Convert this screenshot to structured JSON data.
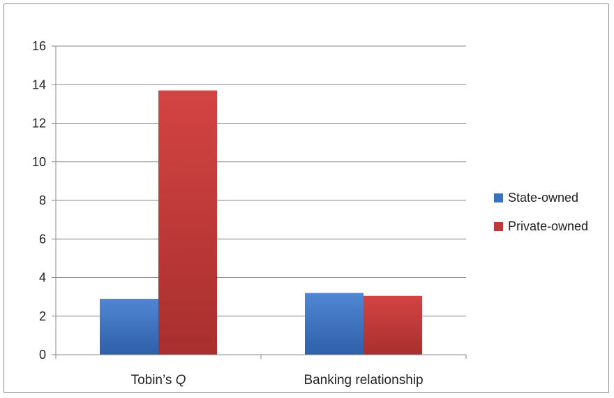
{
  "chart_data": {
    "type": "bar",
    "categories": [
      "Tobin’s Q",
      "Banking relationship"
    ],
    "category_parts": [
      {
        "text": "Tobin’s ",
        "italic": ""
      },
      {
        "text": "Banking relationship",
        "italic": ""
      }
    ],
    "category_italic_suffix": [
      "Q",
      ""
    ],
    "series": [
      {
        "name": "State-owned",
        "values": [
          2.9,
          3.2
        ],
        "color": "#3a72c0",
        "color_light": "#4f86d4",
        "color_dark": "#2f60a8"
      },
      {
        "name": "Private-owned",
        "values": [
          13.7,
          3.05
        ],
        "color": "#c0393a",
        "color_light": "#d34443",
        "color_dark": "#a82f2e"
      }
    ],
    "ylim": [
      0,
      16
    ],
    "yticks": [
      0,
      2,
      4,
      6,
      8,
      10,
      12,
      14,
      16
    ],
    "grid": true,
    "legend_position": "right"
  }
}
